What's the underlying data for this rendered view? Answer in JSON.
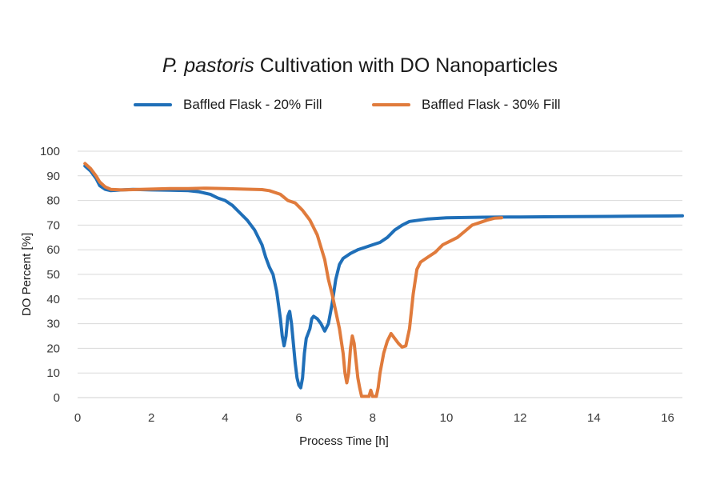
{
  "chart_data": {
    "type": "line",
    "title_italic": "P. pastoris",
    "title_rest": " Cultivation with DO Nanoparticles",
    "xlabel": "Process Time [h]",
    "ylabel": "DO Percent [%]",
    "xlim": [
      0,
      16.4
    ],
    "ylim": [
      0,
      100
    ],
    "x_ticks": [
      0,
      2,
      4,
      6,
      8,
      10,
      12,
      14,
      16
    ],
    "y_ticks": [
      0,
      10,
      20,
      30,
      40,
      50,
      60,
      70,
      80,
      90,
      100
    ],
    "grid": "horizontal",
    "legend_position": "top",
    "series": [
      {
        "name": "Baffled Flask - 20% Fill",
        "color": "#1f6fb8",
        "points": [
          [
            0.2,
            94
          ],
          [
            0.35,
            92
          ],
          [
            0.5,
            89
          ],
          [
            0.6,
            86
          ],
          [
            0.75,
            84.5
          ],
          [
            0.9,
            84
          ],
          [
            1.2,
            84.3
          ],
          [
            1.5,
            84.5
          ],
          [
            2.0,
            84.3
          ],
          [
            2.5,
            84.2
          ],
          [
            3.0,
            84
          ],
          [
            3.3,
            83.5
          ],
          [
            3.6,
            82.5
          ],
          [
            3.8,
            81
          ],
          [
            4.0,
            80
          ],
          [
            4.2,
            78
          ],
          [
            4.4,
            75
          ],
          [
            4.6,
            72
          ],
          [
            4.8,
            68
          ],
          [
            5.0,
            62
          ],
          [
            5.1,
            57
          ],
          [
            5.2,
            53
          ],
          [
            5.3,
            50
          ],
          [
            5.4,
            43
          ],
          [
            5.5,
            32
          ],
          [
            5.55,
            25
          ],
          [
            5.6,
            21
          ],
          [
            5.65,
            25
          ],
          [
            5.7,
            33
          ],
          [
            5.75,
            35
          ],
          [
            5.8,
            30
          ],
          [
            5.85,
            22
          ],
          [
            5.9,
            14
          ],
          [
            5.95,
            8
          ],
          [
            6.0,
            5
          ],
          [
            6.05,
            4
          ],
          [
            6.1,
            8
          ],
          [
            6.15,
            18
          ],
          [
            6.2,
            24
          ],
          [
            6.3,
            28
          ],
          [
            6.35,
            32
          ],
          [
            6.4,
            33
          ],
          [
            6.5,
            32
          ],
          [
            6.6,
            30
          ],
          [
            6.7,
            27
          ],
          [
            6.8,
            30
          ],
          [
            6.9,
            38
          ],
          [
            7.0,
            48
          ],
          [
            7.1,
            54
          ],
          [
            7.2,
            56.5
          ],
          [
            7.4,
            58.5
          ],
          [
            7.6,
            60
          ],
          [
            7.8,
            61
          ],
          [
            8.0,
            62
          ],
          [
            8.2,
            63
          ],
          [
            8.4,
            65
          ],
          [
            8.6,
            68
          ],
          [
            8.8,
            70
          ],
          [
            9.0,
            71.5
          ],
          [
            9.5,
            72.5
          ],
          [
            10.0,
            73
          ],
          [
            11.0,
            73.2
          ],
          [
            12.0,
            73.3
          ],
          [
            13.0,
            73.4
          ],
          [
            14.0,
            73.5
          ],
          [
            15.0,
            73.6
          ],
          [
            16.0,
            73.7
          ],
          [
            16.4,
            73.8
          ]
        ]
      },
      {
        "name": "Baffled Flask - 30% Fill",
        "color": "#e07b3c",
        "points": [
          [
            0.2,
            95
          ],
          [
            0.35,
            93
          ],
          [
            0.5,
            90
          ],
          [
            0.6,
            87.5
          ],
          [
            0.75,
            85.5
          ],
          [
            0.9,
            84.5
          ],
          [
            1.2,
            84.3
          ],
          [
            1.5,
            84.4
          ],
          [
            2.0,
            84.6
          ],
          [
            2.5,
            84.8
          ],
          [
            3.0,
            84.8
          ],
          [
            3.5,
            85
          ],
          [
            4.0,
            84.8
          ],
          [
            4.5,
            84.6
          ],
          [
            5.0,
            84.4
          ],
          [
            5.2,
            84
          ],
          [
            5.5,
            82.5
          ],
          [
            5.7,
            80
          ],
          [
            5.9,
            79
          ],
          [
            6.1,
            76
          ],
          [
            6.3,
            72
          ],
          [
            6.5,
            66
          ],
          [
            6.6,
            61
          ],
          [
            6.7,
            56
          ],
          [
            6.8,
            48
          ],
          [
            6.9,
            42
          ],
          [
            7.0,
            35
          ],
          [
            7.1,
            28
          ],
          [
            7.2,
            18
          ],
          [
            7.25,
            10
          ],
          [
            7.3,
            6
          ],
          [
            7.35,
            10
          ],
          [
            7.4,
            20
          ],
          [
            7.45,
            25
          ],
          [
            7.5,
            22
          ],
          [
            7.55,
            15
          ],
          [
            7.6,
            8
          ],
          [
            7.65,
            4
          ],
          [
            7.7,
            0.5
          ],
          [
            7.8,
            0.5
          ],
          [
            7.9,
            0.5
          ],
          [
            7.95,
            3
          ],
          [
            8.0,
            0.5
          ],
          [
            8.1,
            0.5
          ],
          [
            8.15,
            4
          ],
          [
            8.2,
            10
          ],
          [
            8.3,
            18
          ],
          [
            8.4,
            23
          ],
          [
            8.5,
            26
          ],
          [
            8.6,
            24
          ],
          [
            8.7,
            22
          ],
          [
            8.8,
            20.5
          ],
          [
            8.9,
            21
          ],
          [
            9.0,
            28
          ],
          [
            9.1,
            42
          ],
          [
            9.2,
            52
          ],
          [
            9.3,
            55
          ],
          [
            9.5,
            57
          ],
          [
            9.7,
            59
          ],
          [
            9.9,
            62
          ],
          [
            10.1,
            63.5
          ],
          [
            10.3,
            65
          ],
          [
            10.5,
            67.5
          ],
          [
            10.7,
            70
          ],
          [
            10.9,
            71
          ],
          [
            11.1,
            72
          ],
          [
            11.3,
            72.8
          ],
          [
            11.5,
            73
          ]
        ]
      }
    ]
  }
}
